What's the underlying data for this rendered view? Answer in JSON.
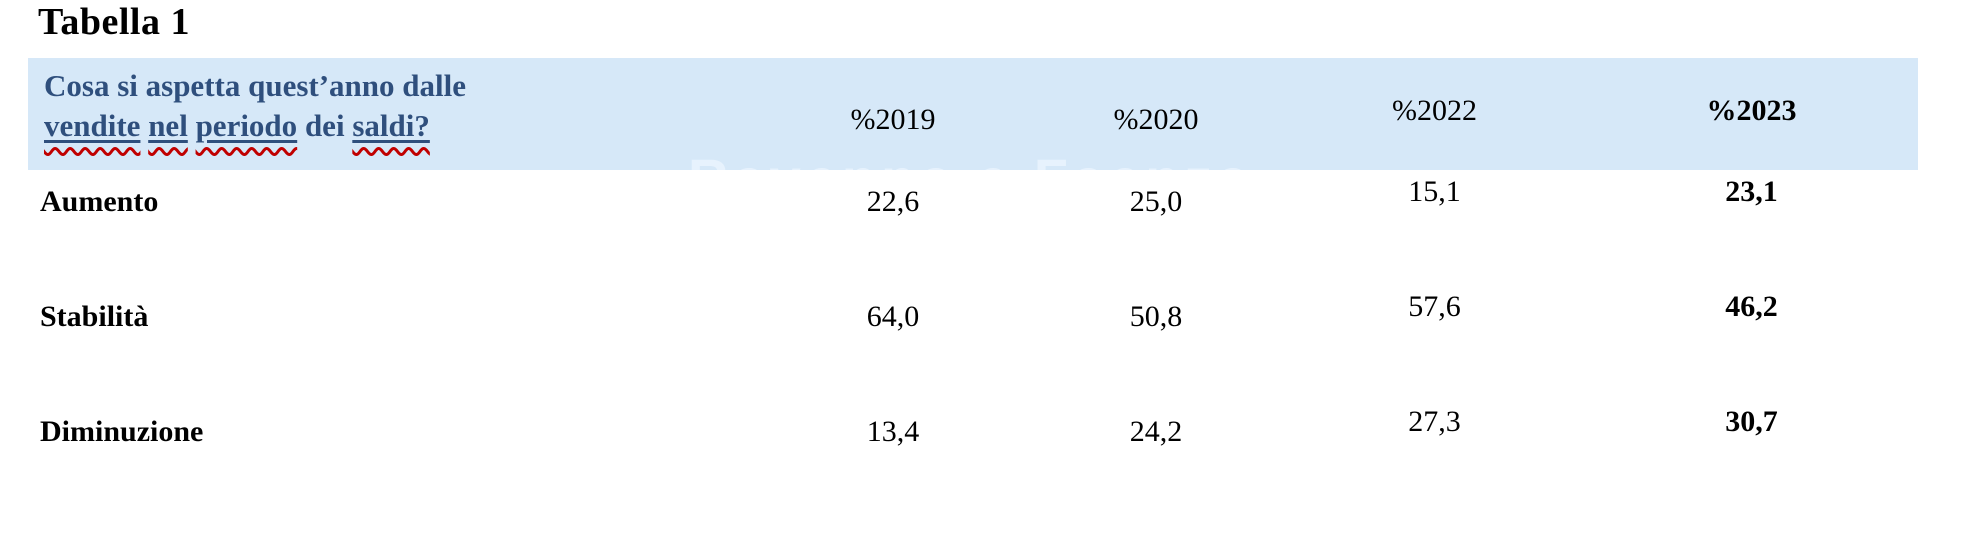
{
  "page": {
    "title": "Tabella 1"
  },
  "watermark": "Ravenna e Faenza",
  "header": {
    "question_line1": "Cosa si aspetta quest’anno dalle",
    "question_line2": {
      "w1": "vendite",
      "w2": "nel",
      "w3": "periodo",
      "w4": "dei",
      "w5": "saldi?"
    },
    "columns": [
      "%2019",
      "%2020",
      "%2022",
      "%2023"
    ]
  },
  "rows": [
    {
      "label": "Aumento",
      "v2019": "22,6",
      "v2020": "25,0",
      "v2022": "15,1",
      "v2023": "23,1"
    },
    {
      "label": "Stabilità",
      "v2019": "64,0",
      "v2020": "50,8",
      "v2022": "57,6",
      "v2023": "46,2"
    },
    {
      "label": "Diminuzione",
      "v2019": "13,4",
      "v2020": "24,2",
      "v2022": "27,3",
      "v2023": "30,7"
    }
  ],
  "colors": {
    "band": "#d6e8f8",
    "question_text": "#2f4f7d",
    "squiggle": "#c00000",
    "watermark": "#e7f2fd",
    "text": "#000000"
  }
}
